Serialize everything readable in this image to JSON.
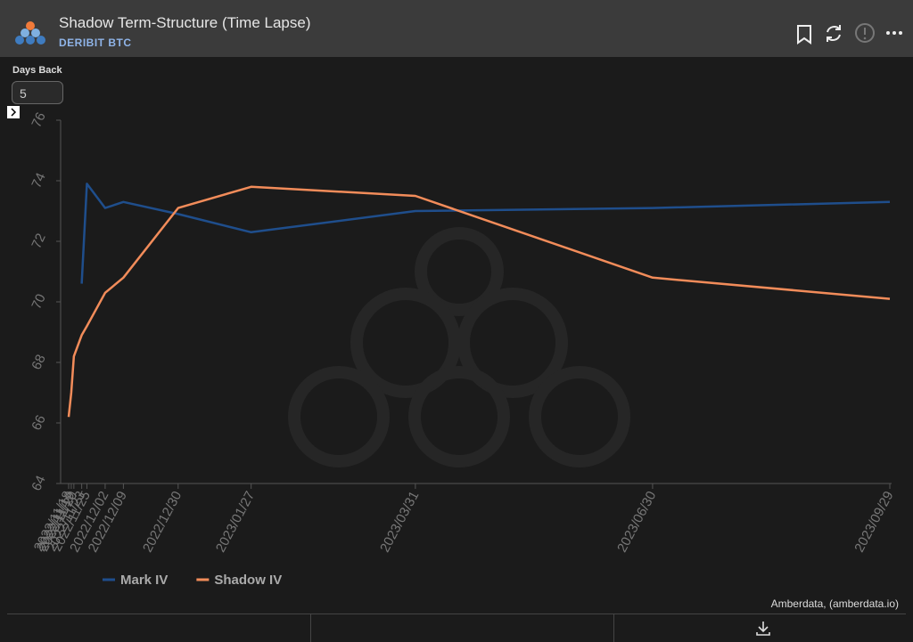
{
  "header": {
    "title": "Shadow Term-Structure (Time Lapse)",
    "subtitle": "DERIBIT BTC"
  },
  "controls": {
    "days_back_label": "Days Back",
    "days_back_value": "5"
  },
  "chart_data": {
    "type": "line",
    "x": [
      "2022/11/18",
      "2022/11/19",
      "2022/11/20",
      "2022/11/23",
      "2022/11/25",
      "2022/12/02",
      "2022/12/09",
      "2022/12/30",
      "2023/01/27",
      "2023/03/31",
      "2023/06/30",
      "2023/09/29"
    ],
    "series": [
      {
        "name": "Mark IV",
        "color": "#1f4e8c",
        "values": [
          null,
          null,
          null,
          70.6,
          73.9,
          73.1,
          73.3,
          72.9,
          72.3,
          73.0,
          73.1,
          73.3
        ]
      },
      {
        "name": "Shadow IV",
        "color": "#f28c5a",
        "values": [
          66.2,
          67.0,
          68.2,
          68.9,
          69.2,
          70.3,
          70.8,
          73.1,
          73.8,
          73.5,
          70.8,
          70.1
        ]
      }
    ],
    "ylim": [
      64,
      76
    ],
    "yticks": [
      64,
      66,
      68,
      70,
      72,
      74,
      76
    ]
  },
  "footer": {
    "credit": "Amberdata, (amberdata.io)"
  }
}
